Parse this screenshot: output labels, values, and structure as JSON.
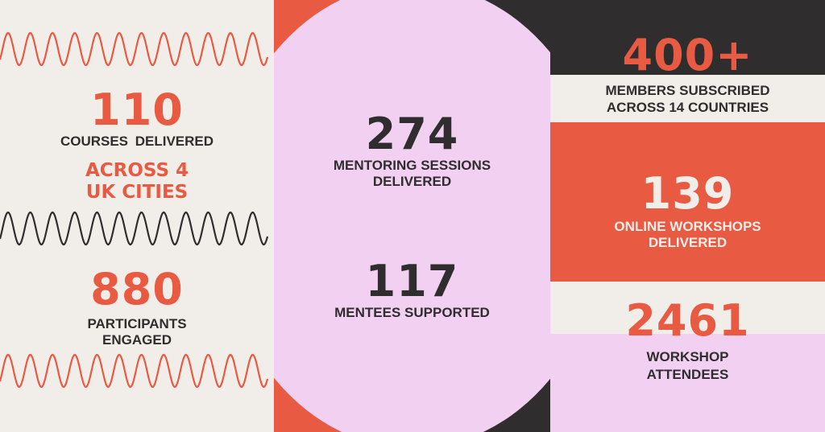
{
  "colors": {
    "orange": "#e85a41",
    "dark": "#2f2d2e",
    "cream": "#f1eee9",
    "pink": "#f2d0f2"
  },
  "left": {
    "stat1": {
      "number": "110",
      "label": "COURSES DELIVERED",
      "highlight_line1": "ACROSS 4",
      "highlight_line2": "UK CITIES"
    },
    "stat2": {
      "number": "880",
      "label_line1": "PARTICIPANTS",
      "label_line2": "ENGAGED"
    }
  },
  "middle": {
    "stat1": {
      "number": "274",
      "label_line1": "MENTORING SESSIONS",
      "label_line2": "DELIVERED"
    },
    "stat2": {
      "number": "117",
      "label": "MENTEES SUPPORTED"
    }
  },
  "right": {
    "stat1": {
      "number": "400+",
      "label_line1": "MEMBERS SUBSCRIBED",
      "label_line2": "ACROSS 14 COUNTRIES"
    },
    "stat2": {
      "number": "139",
      "label_line1": "ONLINE WORKSHOPS",
      "label_line2": "DELIVERED"
    },
    "stat3": {
      "number": "2461",
      "label_line1": "WORKSHOP",
      "label_line2": "ATTENDEES"
    }
  }
}
